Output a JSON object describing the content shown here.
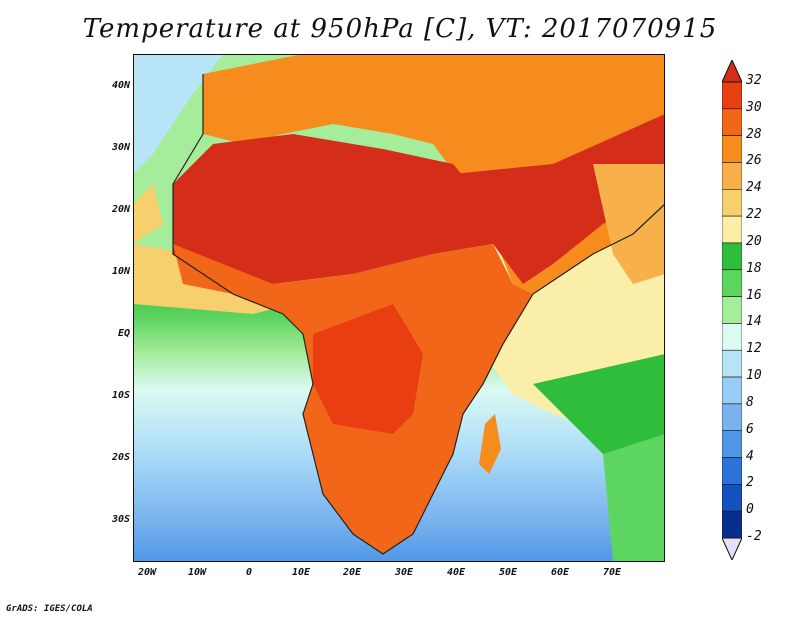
{
  "title": "Temperature at 950hPa [C], VT: 2017070915",
  "credit": "GrADS: IGES/COLA",
  "lat_labels": [
    "40N",
    "30N",
    "20N",
    "10N",
    "EQ",
    "10S",
    "20S",
    "30S"
  ],
  "lon_labels": [
    "20W",
    "10W",
    "0",
    "10E",
    "20E",
    "30E",
    "40E",
    "50E",
    "60E",
    "70E"
  ],
  "colorbar": {
    "labels": [
      "32",
      "30",
      "28",
      "26",
      "24",
      "22",
      "20",
      "18",
      "16",
      "14",
      "12",
      "10",
      "8",
      "6",
      "4",
      "2",
      "0",
      "-2"
    ],
    "colors": [
      "#d42e1a",
      "#e83e12",
      "#f2661a",
      "#f68c1e",
      "#f7b04a",
      "#f8cf6d",
      "#fbeea8",
      "#2fbe3b",
      "#5dd561",
      "#a5ec9b",
      "#dbfaf2",
      "#b8e4f8",
      "#97ccf4",
      "#79b3ee",
      "#5097e6",
      "#2c72d8",
      "#1350c0",
      "#0a2e8c"
    ]
  }
}
